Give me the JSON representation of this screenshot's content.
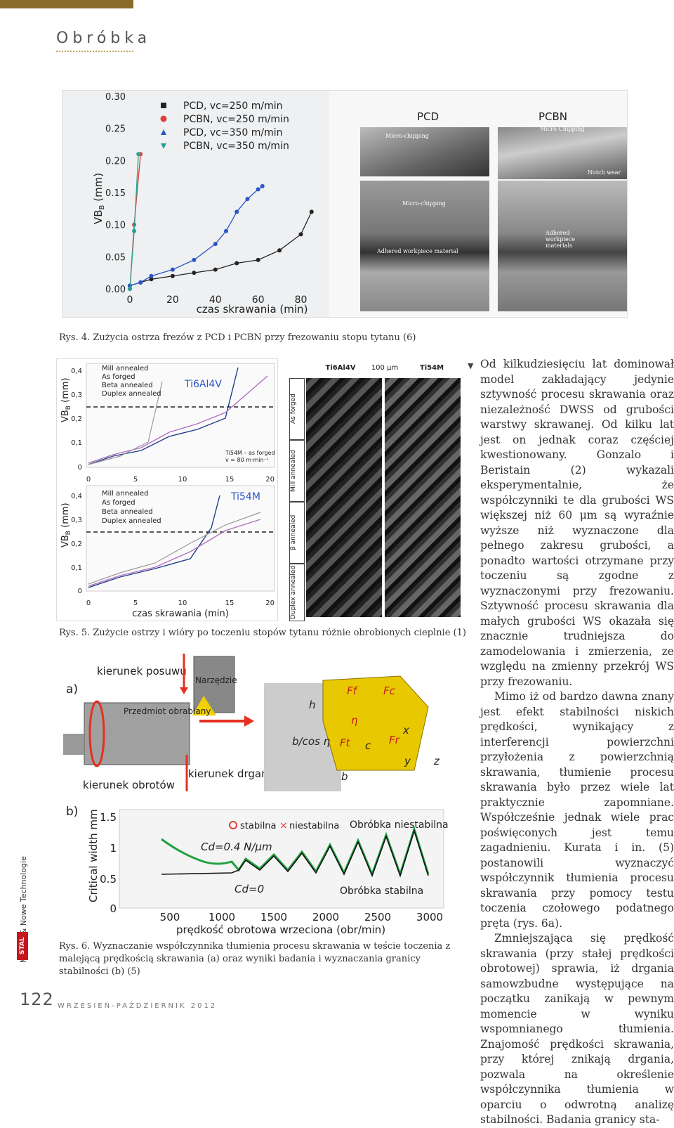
{
  "header": {
    "section": "Obróbka"
  },
  "fig4": {
    "caption": "Rys. 4. Zużycia ostrza frezów z PCD i PCBN przy frezowaniu stopu tytanu (6)",
    "ylabel": "VB",
    "ylabel_sub": "B",
    "ylabel_unit": "(mm)",
    "xlabel": "czas skrawania (min)",
    "yticks": [
      "0.00",
      "0.05",
      "0.10",
      "0.15",
      "0.20",
      "0.25",
      "0.30"
    ],
    "xticks": [
      "0",
      "20",
      "40",
      "60",
      "80"
    ],
    "legend": [
      "PCD, vc=250 m/min",
      "PCBN, vc=250 m/min",
      "PCD, vc=350 m/min",
      "PCBN, vc=350 m/min"
    ],
    "photo_labels": {
      "left": "PCD",
      "right": "PCBN"
    },
    "sem_labels": {
      "micro_chipping_top": "Micro-chipping",
      "micro_chipping_right": "Micro-Chipping",
      "notch_wear": "Notch wear",
      "micro_chipping_mid": "Micro-chipping",
      "adhered": "Adhered workpiece material",
      "adhered_right": "Adhered workpiece materials"
    }
  },
  "fig5": {
    "caption": "Rys. 5. Zużycie ostrzy i wióry po toczeniu stopów tytanu różnie obrobionych cieplnie (1)",
    "legend": [
      "Mill annealed",
      "As forged",
      "Beta annealed",
      "Duplex annealed"
    ],
    "alloy_top": "Ti6Al4V",
    "alloy_bottom": "Ti54M",
    "note_line1": "Ti54M – as forged",
    "note_line2": "v = 80 m·min⁻¹",
    "ylabel": "VB",
    "ylabel_sub": "B",
    "ylabel_unit": "(mm)",
    "xlabel": "czas skrawania (min)",
    "yticks": [
      "0",
      "0,1",
      "0,2",
      "0,3",
      "0,4"
    ],
    "xticks": [
      "0",
      "5",
      "10",
      "15",
      "20"
    ],
    "chip_headers": [
      "Ti6Al4V",
      "100 μm",
      "Ti54M"
    ],
    "chip_rows": [
      "As forged",
      "Mill annealed",
      "β annealed",
      "Duplex annealed"
    ]
  },
  "fig6": {
    "caption": "Rys. 6. Wyznaczanie współczynnika tłumienia procesu skrawania w teście toczenia z malejącą prędkością skrawania (a) oraz wyniki badania i wyznaczania granicy stabilności (b) (5)",
    "a_label": "a)",
    "b_label": "b)",
    "feed": "kierunek posuwu",
    "tool": "Narzędzie",
    "workpiece": "Przedmiot obrabiany",
    "rotation": "kierunek obrotów",
    "vibration": "kierunek drgań",
    "ylabel": "Critical width mm",
    "xlabel": "prędkość obrotowa wrzeciona (obr/min)",
    "yticks": [
      "0",
      "0.5",
      "1",
      "1.5"
    ],
    "xticks": [
      "500",
      "1000",
      "1500",
      "2000",
      "2500",
      "3000"
    ],
    "legend_stable": "stabilna",
    "legend_unstable": "niestabilna",
    "unstable_region": "Obróbka niestabilna",
    "stable_region": "Obróbka stabilna",
    "cd1": "Cd=0.4 N/μm",
    "cd0": "Cd=0",
    "geom": [
      "h",
      "b/cos η",
      "b",
      "η",
      "Ff",
      "Fc",
      "Ft",
      "Fr",
      "c",
      "x",
      "y",
      "z"
    ]
  },
  "article": {
    "paragraphs": [
      "Od kilkudziesięciu lat dominował model zakładający jedynie sztywność procesu skrawania oraz niezależność DWSS od grubości warstwy skrawanej. Od kilku lat jest on jednak coraz częściej kwestionowany. Gonzalo i Beristain (2) wykazali eksperymentalnie, że współczynniki te dla grubości WS większej niż 60 μm są wyraźnie wyższe niż wyznaczone dla pełnego zakresu grubości, a ponadto wartości otrzymane przy toczeniu są zgodne z wyznaczonymi przy frezowaniu. Sztywność procesu skrawania dla małych grubości WS okazała się znacznie trudniejsza do zamodelowania i zmierzenia, ze względu na zmienny przekrój WS przy frezowaniu.",
      "Mimo iż od bardzo dawna znany jest efekt stabilności niskich prędkości, wynikający z interferencji powierzchni przyłożenia z powierzchnią skrawania, tłumienie procesu skrawania było przez wiele lat praktycznie zapomniane. Współcześnie jednak wiele prac poświęconych jest temu zagadnieniu. Kurata i in. (5) postanowili wyznaczyć współczynnik tłumienia procesu skrawania przy pomocy testu toczenia czołowego podatnego pręta (rys. 6a).",
      "Zmniejszająca się prędkość skrawania (przy stałej prędkości obrotowej) sprawia, iż drgania samowzbudne występujące na początku zanikają w pewnym momencie w wyniku wspomnianego tłumienia. Znajomość prędkości skrawania, przy której znikają drgania, pozwala na określenie współczynnika tłumienia w oparciu o odwrotną analizę stabilności. Badania granicy sta-"
    ]
  },
  "side": {
    "magazine": "Metale & Nowe Technologie",
    "brand": "STAL"
  },
  "footer": {
    "page": "122",
    "date": "WRZESIEŃ-PAŹDZIERNIK 2012"
  },
  "colors": {
    "accent": "#c7a45a",
    "brand_red": "#c4161c",
    "pcd": "#222222",
    "pcbn": "#e0403a",
    "pcd350": "#2a55c8",
    "pcbn350": "#2aa090"
  },
  "chart_data": [
    {
      "type": "line",
      "title": "",
      "xlabel": "czas skrawania (min)",
      "ylabel": "VB_B (mm)",
      "xlim": [
        0,
        90
      ],
      "ylim": [
        0,
        0.3
      ],
      "series": [
        {
          "name": "PCD, vc=250 m/min",
          "x": [
            0,
            5,
            10,
            20,
            30,
            40,
            50,
            60,
            70,
            80,
            85
          ],
          "y": [
            0.005,
            0.01,
            0.015,
            0.02,
            0.025,
            0.03,
            0.04,
            0.045,
            0.06,
            0.085,
            0.12
          ]
        },
        {
          "name": "PCBN, vc=250 m/min",
          "x": [
            0,
            2,
            5
          ],
          "y": [
            0.0,
            0.1,
            0.21
          ]
        },
        {
          "name": "PCD, vc=350 m/min",
          "x": [
            0,
            5,
            10,
            20,
            30,
            40,
            45,
            50,
            55,
            60,
            62
          ],
          "y": [
            0.005,
            0.01,
            0.02,
            0.03,
            0.045,
            0.07,
            0.09,
            0.12,
            0.14,
            0.155,
            0.16
          ]
        },
        {
          "name": "PCBN, vc=350 m/min",
          "x": [
            0,
            2,
            4
          ],
          "y": [
            0.0,
            0.09,
            0.21
          ]
        }
      ]
    }
  ]
}
